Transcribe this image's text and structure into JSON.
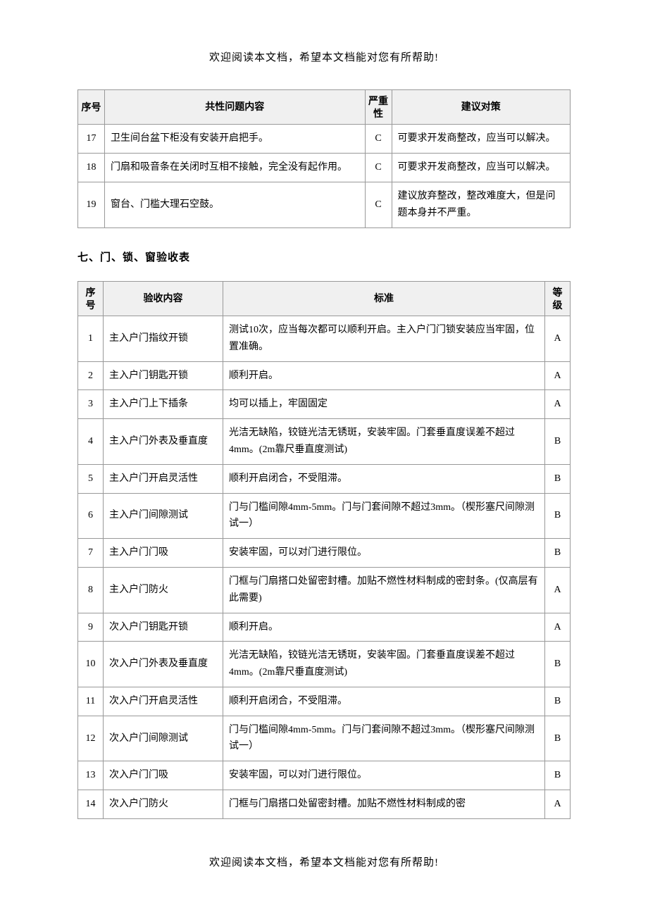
{
  "page": {
    "header_note": "欢迎阅读本文档，希望本文档能对您有所帮助!",
    "footer_note": "欢迎阅读本文档，希望本文档能对您有所帮助!"
  },
  "table1": {
    "columns": {
      "seq": "序号",
      "content": "共性问题内容",
      "severity": "严重性",
      "suggestion": "建议对策"
    },
    "rows": [
      {
        "seq": "17",
        "content": "卫生间台盆下柜没有安装开启把手。",
        "severity": "C",
        "suggestion": "可要求开发商整改，应当可以解决。"
      },
      {
        "seq": "18",
        "content": "门扇和吸音条在关闭时互相不接触，完全没有起作用。",
        "severity": "C",
        "suggestion": "可要求开发商整改，应当可以解决。"
      },
      {
        "seq": "19",
        "content": "窗台、门槛大理石空鼓。",
        "severity": "C",
        "suggestion": "建议放弃整改，整改难度大，但是问题本身并不严重。"
      }
    ]
  },
  "section_title": "七、门、锁、窗验收表",
  "table2": {
    "columns": {
      "seq": "序号",
      "content": "验收内容",
      "standard": "标准",
      "level": "等级"
    },
    "rows": [
      {
        "seq": "1",
        "content": "主入户门指纹开锁",
        "standard": "测试10次，应当每次都可以顺利开启。主入户门门锁安装应当牢固，位置准确。",
        "level": "A"
      },
      {
        "seq": "2",
        "content": "主入户门钥匙开锁",
        "standard": "顺利开启。",
        "level": "A"
      },
      {
        "seq": "3",
        "content": "主入户门上下插条",
        "standard": "均可以插上，牢固固定",
        "level": "A"
      },
      {
        "seq": "4",
        "content": "主入户门外表及垂直度",
        "standard": "光洁无缺陷，铰链光洁无锈斑，安装牢固。门套垂直度误差不超过4mm。(2m靠尺垂直度测试)",
        "level": "B"
      },
      {
        "seq": "5",
        "content": "主入户门开启灵活性",
        "standard": "顺利开启闭合，不受阻滞。",
        "level": "B"
      },
      {
        "seq": "6",
        "content": "主入户门间隙测试",
        "standard": "门与门槛间隙4mm-5mm。门与门套间隙不超过3mm。（楔形塞尺间隙测试一）",
        "level": "B"
      },
      {
        "seq": "7",
        "content": "主入户门门吸",
        "standard": "安装牢固，可以对门进行限位。",
        "level": "B"
      },
      {
        "seq": "8",
        "content": "主入户门防火",
        "standard": "门框与门扇搭口处留密封槽。加贴不燃性材料制成的密封条。(仅高层有此需要)",
        "level": "A"
      },
      {
        "seq": "9",
        "content": "次入户门钥匙开锁",
        "standard": "顺利开启。",
        "level": "A"
      },
      {
        "seq": "10",
        "content": "次入户门外表及垂直度",
        "standard": "光洁无缺陷，铰链光洁无锈斑，安装牢固。门套垂直度误差不超过4mm。(2m靠尺垂直度测试)",
        "level": "B"
      },
      {
        "seq": "11",
        "content": "次入户门开启灵活性",
        "standard": "顺利开启闭合，不受阻滞。",
        "level": "B"
      },
      {
        "seq": "12",
        "content": "次入户门间隙测试",
        "standard": "门与门槛间隙4mm-5mm。门与门套间隙不超过3mm。（楔形塞尺间隙测试一）",
        "level": "B"
      },
      {
        "seq": "13",
        "content": "次入户门门吸",
        "standard": "安装牢固，可以对门进行限位。",
        "level": "B"
      },
      {
        "seq": "14",
        "content": "次入户门防火",
        "standard": "门框与门扇搭口处留密封槽。加贴不燃性材料制成的密",
        "level": "A"
      }
    ]
  }
}
